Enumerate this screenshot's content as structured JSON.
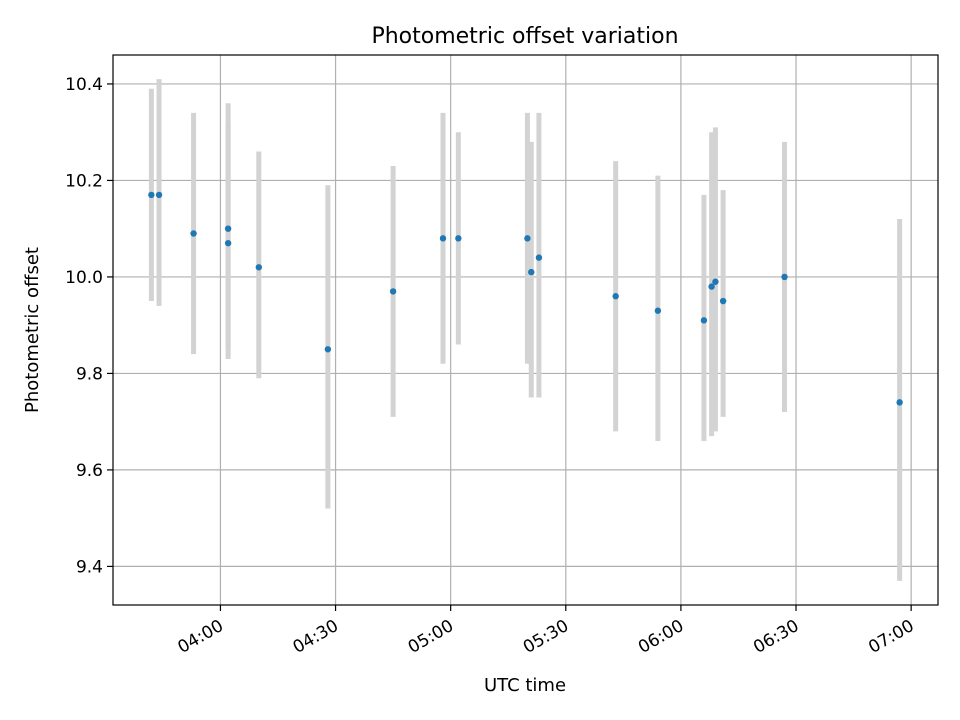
{
  "chart_data": {
    "type": "scatter",
    "title": "Photometric offset variation",
    "xlabel": "UTC time",
    "ylabel": "Photometric offset",
    "xlim": [
      "03:32",
      "07:07"
    ],
    "ylim": [
      9.32,
      10.46
    ],
    "grid": true,
    "x_ticks": [
      "04:00",
      "04:30",
      "05:00",
      "05:30",
      "06:00",
      "06:30",
      "07:00"
    ],
    "y_ticks": [
      9.4,
      9.6,
      9.8,
      10.0,
      10.2,
      10.4
    ],
    "y_tick_labels": [
      "9.4",
      "9.6",
      "9.8",
      "10.0",
      "10.2",
      "10.4"
    ],
    "colors": {
      "marker": "#1f77b4",
      "errorbar": "#d3d3d3",
      "grid": "#b0b0b0"
    },
    "series": [
      {
        "points": [
          {
            "x": "03:42",
            "y": 10.17,
            "ylow": 9.95,
            "yhigh": 10.39
          },
          {
            "x": "03:44",
            "y": 10.17,
            "ylow": 9.94,
            "yhigh": 10.41
          },
          {
            "x": "03:53",
            "y": 10.09,
            "ylow": 9.84,
            "yhigh": 10.34
          },
          {
            "x": "04:02",
            "y": 10.1,
            "ylow": 9.85,
            "yhigh": 10.36
          },
          {
            "x": "04:02",
            "y": 10.07,
            "ylow": 9.83,
            "yhigh": 10.32
          },
          {
            "x": "04:10",
            "y": 10.02,
            "ylow": 9.79,
            "yhigh": 10.26
          },
          {
            "x": "04:28",
            "y": 9.85,
            "ylow": 9.52,
            "yhigh": 10.19
          },
          {
            "x": "04:45",
            "y": 9.97,
            "ylow": 9.71,
            "yhigh": 10.23
          },
          {
            "x": "04:58",
            "y": 10.08,
            "ylow": 9.82,
            "yhigh": 10.34
          },
          {
            "x": "05:02",
            "y": 10.08,
            "ylow": 9.86,
            "yhigh": 10.3
          },
          {
            "x": "05:20",
            "y": 10.08,
            "ylow": 9.82,
            "yhigh": 10.34
          },
          {
            "x": "05:21",
            "y": 10.01,
            "ylow": 9.75,
            "yhigh": 10.28
          },
          {
            "x": "05:23",
            "y": 10.04,
            "ylow": 9.75,
            "yhigh": 10.34
          },
          {
            "x": "05:43",
            "y": 9.96,
            "ylow": 9.68,
            "yhigh": 10.24
          },
          {
            "x": "05:54",
            "y": 9.93,
            "ylow": 9.66,
            "yhigh": 10.21
          },
          {
            "x": "06:06",
            "y": 9.91,
            "ylow": 9.66,
            "yhigh": 10.17
          },
          {
            "x": "06:08",
            "y": 9.98,
            "ylow": 9.67,
            "yhigh": 10.3
          },
          {
            "x": "06:09",
            "y": 9.99,
            "ylow": 9.68,
            "yhigh": 10.31
          },
          {
            "x": "06:11",
            "y": 9.95,
            "ylow": 9.71,
            "yhigh": 10.18
          },
          {
            "x": "06:27",
            "y": 10.0,
            "ylow": 9.72,
            "yhigh": 10.28
          },
          {
            "x": "06:57",
            "y": 9.74,
            "ylow": 9.37,
            "yhigh": 10.12
          }
        ]
      }
    ]
  }
}
